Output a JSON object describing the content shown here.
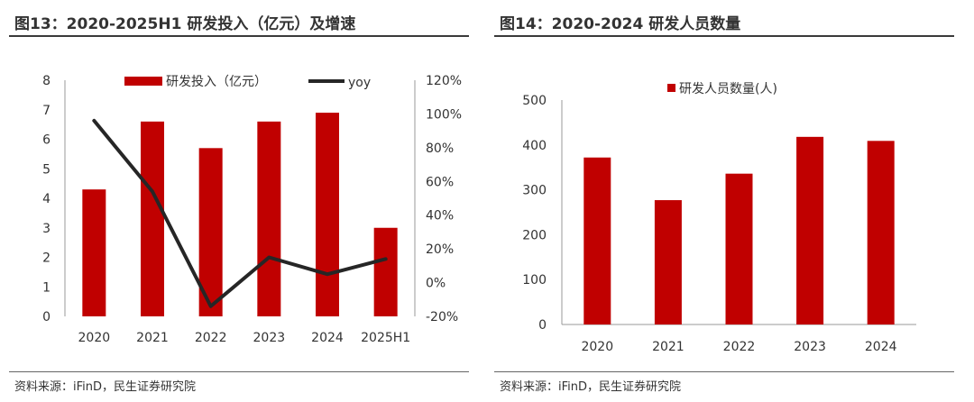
{
  "left": {
    "title": "图13：2020-2025H1 研发投入（亿元）及增速",
    "source": "资料来源：iFinD，民生证券研究院"
  },
  "right": {
    "title": "图14：2020-2024 研发人员数量",
    "source": "资料来源：iFinD，民生证券研究院"
  },
  "colors": {
    "bar": "#C00000",
    "line": "#262626",
    "axis": "#999999"
  },
  "chart_data": [
    {
      "type": "bar",
      "categories": [
        "2020",
        "2021",
        "2022",
        "2023",
        "2024",
        "2025H1"
      ],
      "series": [
        {
          "name": "研发投入（亿元）",
          "type": "bar",
          "axis": "left",
          "values": [
            4.3,
            6.6,
            5.7,
            6.6,
            6.9,
            3.0
          ]
        },
        {
          "name": "yoy",
          "type": "line",
          "axis": "right",
          "values": [
            0.96,
            0.54,
            -0.14,
            0.15,
            0.05,
            0.14
          ]
        }
      ],
      "ylim": [
        0,
        8
      ],
      "yticks": [
        "0",
        "1",
        "2",
        "3",
        "4",
        "5",
        "6",
        "7",
        "8"
      ],
      "y2lim": [
        -0.2,
        1.2
      ],
      "y2ticks": [
        "-20%",
        "0%",
        "20%",
        "40%",
        "60%",
        "80%",
        "100%",
        "120%"
      ],
      "legend": "top"
    },
    {
      "type": "bar",
      "categories": [
        "2020",
        "2021",
        "2022",
        "2023",
        "2024"
      ],
      "series": [
        {
          "name": "研发人员数量(人)",
          "values": [
            372,
            277,
            336,
            418,
            409
          ]
        }
      ],
      "ylim": [
        0,
        500
      ],
      "yticks": [
        "0",
        "100",
        "200",
        "300",
        "400",
        "500"
      ],
      "legend": "top"
    }
  ]
}
